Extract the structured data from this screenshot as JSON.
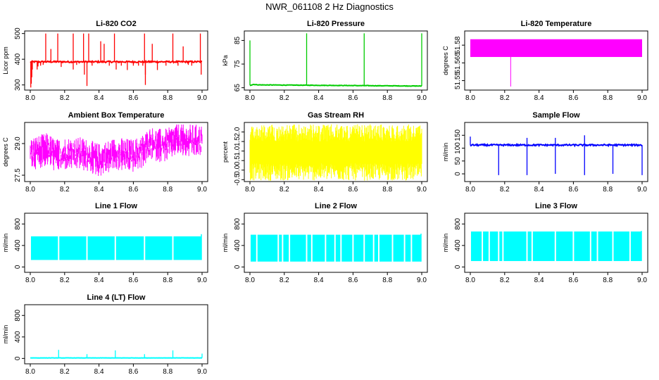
{
  "page": {
    "title": "NWR_061108  2 Hz Diagnostics"
  },
  "chart_data": [
    {
      "type": "line",
      "title": "Li-820 CO2",
      "xlabel": "",
      "ylabel": "Licor ppm",
      "xlim": [
        8.0,
        9.0
      ],
      "ylim": [
        280,
        510
      ],
      "grid": false,
      "xticks": [
        "8.0",
        "8.2",
        "8.4",
        "8.6",
        "8.8",
        "9.0"
      ],
      "yticks": [
        {
          "value": 300,
          "label": "300"
        },
        {
          "value": 400,
          "label": "400"
        },
        {
          "value": 500,
          "label": "500"
        }
      ],
      "series": [
        {
          "color": "#ff0000",
          "baseline": 390,
          "band": 6,
          "spikes": [
            [
              8.003,
              290
            ],
            [
              8.006,
              305
            ],
            [
              8.009,
              330
            ],
            [
              8.012,
              360
            ],
            [
              8.04,
              360
            ],
            [
              8.045,
              372
            ],
            [
              8.06,
              375
            ],
            [
              8.06,
              380
            ],
            [
              8.075,
              378
            ],
            [
              8.09,
              500
            ],
            [
              8.12,
              440
            ],
            [
              8.15,
              395
            ],
            [
              8.16,
              500
            ],
            [
              8.18,
              370
            ],
            [
              8.25,
              360
            ],
            [
              8.25,
              500
            ],
            [
              8.27,
              378
            ],
            [
              8.31,
              500
            ],
            [
              8.315,
              340
            ],
            [
              8.33,
              296
            ],
            [
              8.34,
              500
            ],
            [
              8.36,
              375
            ],
            [
              8.41,
              470
            ],
            [
              8.43,
              460
            ],
            [
              8.46,
              375
            ],
            [
              8.49,
              500
            ],
            [
              8.5,
              360
            ],
            [
              8.53,
              375
            ],
            [
              8.565,
              358
            ],
            [
              8.6,
              375
            ],
            [
              8.63,
              375
            ],
            [
              8.655,
              375
            ],
            [
              8.665,
              500
            ],
            [
              8.67,
              300
            ],
            [
              8.67,
              340
            ],
            [
              8.71,
              460
            ],
            [
              8.74,
              358
            ],
            [
              8.79,
              375
            ],
            [
              8.83,
              500
            ],
            [
              8.86,
              375
            ],
            [
              8.89,
              450
            ],
            [
              8.92,
              378
            ],
            [
              8.94,
              375
            ],
            [
              8.99,
              500
            ],
            [
              8.995,
              340
            ]
          ]
        }
      ]
    },
    {
      "type": "line",
      "title": "Li-820 Pressure",
      "xlabel": "",
      "ylabel": "kPa",
      "xlim": [
        8.0,
        9.0
      ],
      "ylim": [
        64,
        89
      ],
      "grid": false,
      "xticks": [
        "8.0",
        "8.2",
        "8.4",
        "8.6",
        "8.8",
        "9.0"
      ],
      "yticks": [
        {
          "value": 65,
          "label": "65"
        },
        {
          "value": 75,
          "label": "75"
        },
        {
          "value": 85,
          "label": "85"
        }
      ],
      "series": [
        {
          "color": "#00cc00",
          "baseline": 66,
          "band": 0.2,
          "drift": [
            [
              8.0,
              66.0
            ],
            [
              8.02,
              66.4
            ],
            [
              8.05,
              66.2
            ],
            [
              9.0,
              65.7
            ]
          ],
          "spikes": [
            [
              8.0,
              85
            ],
            [
              8.33,
              88
            ],
            [
              8.665,
              88
            ],
            [
              9.0,
              88
            ]
          ]
        }
      ]
    },
    {
      "type": "area",
      "title": "Li-820 Temperature",
      "xlabel": "",
      "ylabel": "degrees C",
      "xlim": [
        8.0,
        9.0
      ],
      "ylim": [
        51.542,
        51.592
      ],
      "grid": false,
      "xticks": [
        "8.0",
        "8.2",
        "8.4",
        "8.6",
        "8.8",
        "9.0"
      ],
      "yticks": [
        {
          "value": 51.55,
          "label": "51.55"
        },
        {
          "value": 51.565,
          "label": "51.565"
        },
        {
          "value": 51.58,
          "label": "51.58"
        }
      ],
      "series": [
        {
          "color": "#ff00ff",
          "band_low": 51.57,
          "band_high": 51.585,
          "spikes": [
            [
              8.235,
              51.545
            ]
          ]
        }
      ]
    },
    {
      "type": "line",
      "title": "Ambient Box Temperature",
      "xlabel": "",
      "ylabel": "degrees C",
      "xlim": [
        8.0,
        9.0
      ],
      "ylim": [
        27.2,
        30.0
      ],
      "grid": false,
      "xticks": [
        "8.0",
        "8.2",
        "8.4",
        "8.6",
        "8.8",
        "9.0"
      ],
      "yticks": [
        {
          "value": 27.5,
          "label": "27.5"
        },
        {
          "value": 29.0,
          "label": "29.0"
        }
      ],
      "series": [
        {
          "color": "#ff00ff",
          "noise_lo": 27.6,
          "noise_hi": 29.6,
          "center": [
            [
              8.0,
              28.6
            ],
            [
              8.05,
              28.7
            ],
            [
              8.1,
              28.8
            ],
            [
              8.15,
              28.5
            ],
            [
              8.2,
              28.6
            ],
            [
              8.3,
              28.6
            ],
            [
              8.4,
              28.3
            ],
            [
              8.5,
              28.6
            ],
            [
              8.6,
              28.5
            ],
            [
              8.65,
              28.7
            ],
            [
              8.7,
              29.1
            ],
            [
              8.75,
              29.0
            ],
            [
              8.8,
              29.0
            ],
            [
              8.85,
              29.3
            ],
            [
              8.9,
              29.2
            ],
            [
              9.0,
              29.2
            ]
          ],
          "amplitude": 0.55
        }
      ]
    },
    {
      "type": "area",
      "title": "Gas Stream RH",
      "xlabel": "",
      "ylabel": "percent",
      "xlim": [
        8.0,
        9.0
      ],
      "ylim": [
        -0.6,
        2.5
      ],
      "grid": false,
      "xticks": [
        "8.0",
        "8.2",
        "8.4",
        "8.6",
        "8.8",
        "9.0"
      ],
      "yticks": [
        {
          "value": -0.5,
          "label": "-0.5"
        },
        {
          "value": 0.0,
          "label": "0.0"
        },
        {
          "value": 0.5,
          "label": "0.5"
        },
        {
          "value": 1.0,
          "label": "1.0"
        },
        {
          "value": 1.5,
          "label": "1.5"
        },
        {
          "value": 2.0,
          "label": "2.0"
        }
      ],
      "series": [
        {
          "color": "#ffff00",
          "band_low": -0.55,
          "band_high": 2.4
        }
      ]
    },
    {
      "type": "line",
      "title": "Sample Flow",
      "xlabel": "",
      "ylabel": "ml/min",
      "xlim": [
        8.0,
        9.0
      ],
      "ylim": [
        -30,
        200
      ],
      "grid": false,
      "xticks": [
        "8.0",
        "8.2",
        "8.4",
        "8.6",
        "8.8",
        "9.0"
      ],
      "yticks": [
        {
          "value": 0,
          "label": "0"
        },
        {
          "value": 50,
          "label": "50"
        },
        {
          "value": 100,
          "label": "100"
        },
        {
          "value": 150,
          "label": "150"
        }
      ],
      "series": [
        {
          "color": "#0000ff",
          "baseline": 112,
          "band": 6,
          "spikes": [
            [
              8.0,
              145
            ],
            [
              8.165,
              -5
            ],
            [
              8.33,
              140
            ],
            [
              8.33,
              -5
            ],
            [
              8.495,
              0
            ],
            [
              8.495,
              140
            ],
            [
              8.665,
              150
            ],
            [
              8.665,
              -5
            ],
            [
              8.83,
              0
            ],
            [
              9.0,
              -5
            ]
          ]
        }
      ]
    },
    {
      "type": "area",
      "title": "Line 1 Flow",
      "xlabel": "",
      "ylabel": "ml/min",
      "xlim": [
        8.0,
        9.0
      ],
      "ylim": [
        -100,
        1000
      ],
      "grid": false,
      "xticks": [
        "8.0",
        "8.2",
        "8.4",
        "8.6",
        "8.8",
        "9.0"
      ],
      "yticks": [
        {
          "value": 0,
          "label": "0"
        },
        {
          "value": 400,
          "label": "400"
        },
        {
          "value": 800,
          "label": "800"
        }
      ],
      "series": [
        {
          "color": "#00ffff",
          "band_low": 130,
          "band_high": 570,
          "gaps": [
            8.165,
            8.33,
            8.495,
            8.665,
            8.83
          ],
          "edge_max": 610
        }
      ]
    },
    {
      "type": "area",
      "title": "Line 2 Flow",
      "xlabel": "",
      "ylabel": "ml/min",
      "xlim": [
        8.0,
        9.0
      ],
      "ylim": [
        -100,
        1000
      ],
      "grid": false,
      "xticks": [
        "8.0",
        "8.2",
        "8.4",
        "8.6",
        "8.8",
        "9.0"
      ],
      "yticks": [
        {
          "value": 0,
          "label": "0"
        },
        {
          "value": 400,
          "label": "400"
        },
        {
          "value": 800,
          "label": "800"
        }
      ],
      "series": [
        {
          "color": "#00ffff",
          "band_low": 100,
          "band_high": 600,
          "gaps": [
            8.04,
            8.165,
            8.19,
            8.23,
            8.33,
            8.36,
            8.44,
            8.495,
            8.53,
            8.6,
            8.665,
            8.72,
            8.75,
            8.83,
            8.9,
            8.94
          ],
          "edge_max": 620
        }
      ]
    },
    {
      "type": "area",
      "title": "Line 3 Flow",
      "xlabel": "",
      "ylabel": "ml/min",
      "xlim": [
        8.0,
        9.0
      ],
      "ylim": [
        -100,
        1000
      ],
      "grid": false,
      "xticks": [
        "8.0",
        "8.2",
        "8.4",
        "8.6",
        "8.8",
        "9.0"
      ],
      "yticks": [
        {
          "value": 0,
          "label": "0"
        },
        {
          "value": 400,
          "label": "400"
        },
        {
          "value": 800,
          "label": "800"
        }
      ],
      "series": [
        {
          "color": "#00ffff",
          "band_low": 110,
          "band_high": 660,
          "gaps": [
            8.07,
            8.11,
            8.165,
            8.19,
            8.33,
            8.36,
            8.495,
            8.6,
            8.7,
            8.74,
            8.83,
            8.93
          ],
          "edge_max": 670
        }
      ]
    },
    {
      "type": "line",
      "title": "Line 4 (LT) Flow",
      "xlabel": "",
      "ylabel": "ml/min",
      "xlim": [
        8.0,
        9.0
      ],
      "ylim": [
        -100,
        1000
      ],
      "grid": false,
      "xticks": [
        "8.0",
        "8.2",
        "8.4",
        "8.6",
        "8.8",
        "9.0"
      ],
      "yticks": [
        {
          "value": 0,
          "label": "0"
        },
        {
          "value": 400,
          "label": "400"
        },
        {
          "value": 800,
          "label": "800"
        }
      ],
      "series": [
        {
          "color": "#00ffff",
          "baseline": 10,
          "band": 3,
          "spikes": [
            [
              8.165,
              160
            ],
            [
              8.33,
              80
            ],
            [
              8.495,
              150
            ],
            [
              8.665,
              80
            ],
            [
              8.83,
              150
            ],
            [
              9.0,
              90
            ]
          ]
        }
      ]
    }
  ]
}
